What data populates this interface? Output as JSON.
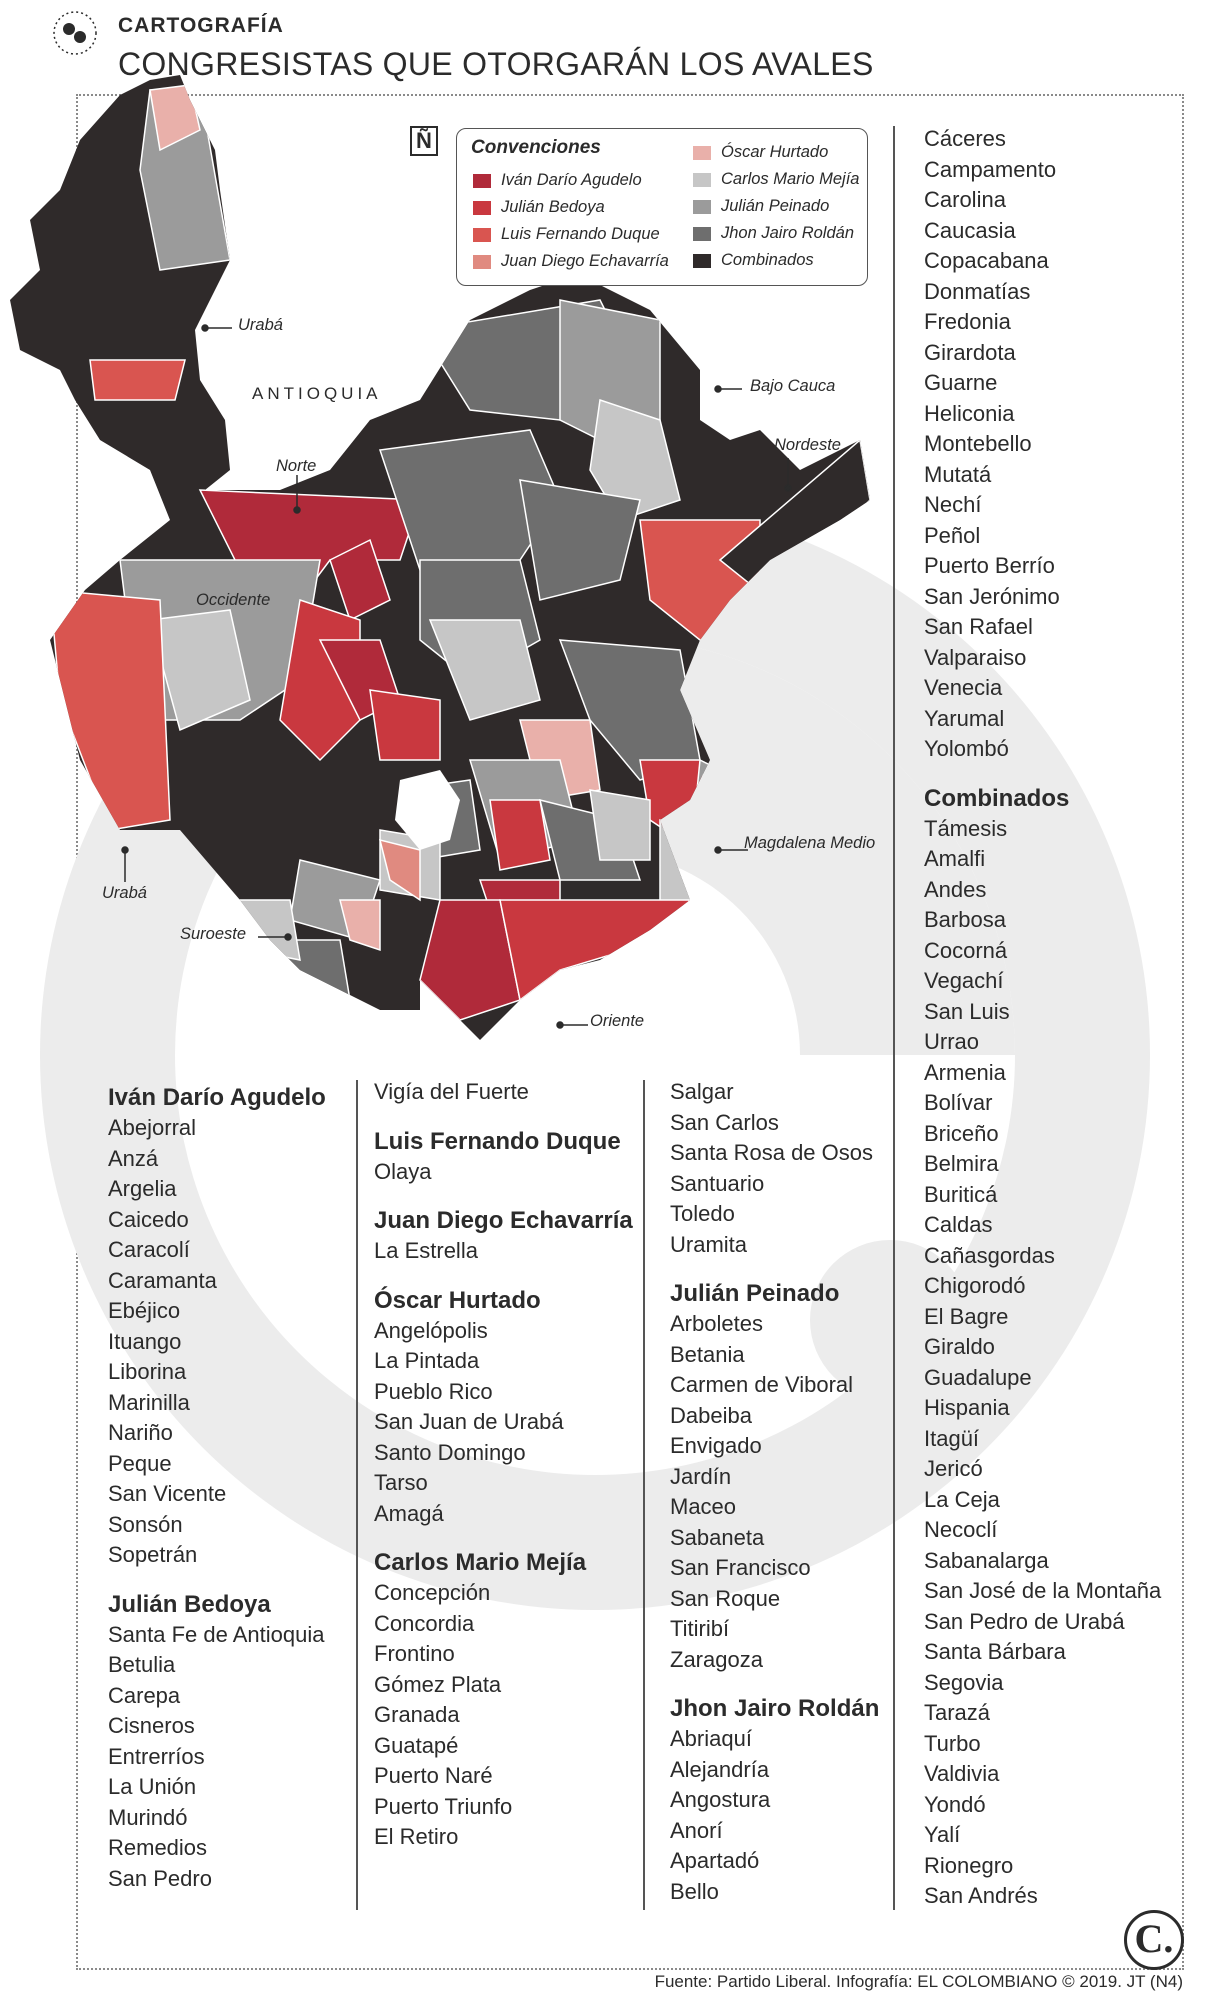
{
  "header": {
    "kicker": "CARTOGRAFÍA",
    "title": "CONGRESISTAS QUE OTORGARÁN LOS AVALES"
  },
  "map": {
    "north_symbol": "Ñ",
    "department_label": "ANTIOQUIA",
    "region_labels": {
      "uraba_north": "Urabá",
      "uraba_south": "Urabá",
      "norte": "Norte",
      "occidente": "Occidente",
      "bajo_cauca": "Bajo Cauca",
      "nordeste": "Nordeste",
      "magdalena_medio": "Magdalena Medio",
      "suroeste": "Suroeste",
      "oriente": "Oriente"
    }
  },
  "legend": {
    "title": "Convenciones",
    "items": [
      {
        "label": "Iván Darío Agudelo",
        "color": "#b02a3a"
      },
      {
        "label": "Julián Bedoya",
        "color": "#c9383f"
      },
      {
        "label": "Luis Fernando Duque",
        "color": "#d95550"
      },
      {
        "label": "Juan Diego Echavarría",
        "color": "#e08a80"
      },
      {
        "label": "Óscar Hurtado",
        "color": "#e9b0aa"
      },
      {
        "label": "Carlos Mario Mejía",
        "color": "#c6c6c6"
      },
      {
        "label": "Julián Peinado",
        "color": "#9b9b9b"
      },
      {
        "label": "Jhon Jairo Roldán",
        "color": "#6e6e6e"
      },
      {
        "label": "Combinados",
        "color": "#2f2a2a"
      }
    ]
  },
  "lists": {
    "agudelo": {
      "name": "Iván Darío Agudelo",
      "items": [
        "Abejorral",
        "Anzá",
        "Argelia",
        "Caicedo",
        "Caracolí",
        "Caramanta",
        "Ebéjico",
        "Ituango",
        "Liborina",
        "Marinilla",
        "Nariño",
        "Peque",
        "San Vicente",
        "Sonsón",
        "Sopetrán"
      ]
    },
    "bedoya": {
      "name": "Julián Bedoya",
      "items": [
        "Santa Fe de Antioquia",
        "Betulia",
        "Carepa",
        "Cisneros",
        "Entrerríos",
        "La Unión",
        "Murindó",
        "Remedios",
        "San Pedro",
        "Vigía del Fuerte"
      ]
    },
    "duque": {
      "name": "Luis Fernando Duque",
      "items": [
        "Olaya"
      ]
    },
    "echavarria": {
      "name": "Juan Diego Echavarría",
      "items": [
        "La Estrella"
      ]
    },
    "hurtado": {
      "name": "Óscar Hurtado",
      "items": [
        "Angelópolis",
        "La Pintada",
        "Pueblo Rico",
        "San Juan de Urabá",
        "Santo Domingo",
        "Tarso",
        "Amagá"
      ]
    },
    "mejia": {
      "name": "Carlos Mario Mejía",
      "items": [
        "Concepción",
        "Concordia",
        "Frontino",
        "Gómez Plata",
        "Granada",
        "Guatapé",
        "Puerto Naré",
        "Puerto Triunfo",
        "El Retiro",
        "Salgar",
        "San Carlos",
        "Santa Rosa de Osos",
        "Santuario",
        "Toledo",
        "Uramita"
      ]
    },
    "peinado": {
      "name": "Julián Peinado",
      "items": [
        "Arboletes",
        "Betania",
        "Carmen de Viboral",
        "Dabeiba",
        "Envigado",
        "Jardín",
        "Maceo",
        "Sabaneta",
        "San Francisco",
        "San Roque",
        "Titiribí",
        "Zaragoza"
      ]
    },
    "roldan": {
      "name": "Jhon Jairo Roldán",
      "items": [
        "Abriaquí",
        "Alejandría",
        "Angostura",
        "Anorí",
        "Apartadó",
        "Bello",
        "Cáceres",
        "Campamento",
        "Carolina",
        "Caucasia",
        "Copacabana",
        "Donmatías",
        "Fredonia",
        "Girardota",
        "Guarne",
        "Heliconia",
        "Montebello",
        "Mutatá",
        "Nechí",
        "Peñol",
        "Puerto Berrío",
        "San Jerónimo",
        "San Rafael",
        "Valparaiso",
        "Venecia",
        "Yarumal",
        "Yolombó"
      ]
    },
    "combinados": {
      "name": "Combinados",
      "items": [
        "Támesis",
        "Amalfi",
        "Andes",
        "Barbosa",
        "Cocorná",
        "Vegachí",
        "San Luis",
        "Urrao",
        "Armenia",
        "Bolívar",
        "Briceño",
        "Belmira",
        "Buriticá",
        "Caldas",
        "Cañasgordas",
        "Chigorodó",
        "El Bagre",
        "Giraldo",
        "Guadalupe",
        "Hispania",
        "Itagüí",
        "Jericó",
        "La Ceja",
        "Necoclí",
        "Sabanalarga",
        "San José de la Montaña",
        "San Pedro de Urabá",
        "Santa Bárbara",
        "Segovia",
        "Tarazá",
        "Turbo",
        "Valdivia",
        "Yondó",
        "Yalí",
        "Rionegro",
        "San Andrés"
      ]
    }
  },
  "footer": {
    "source": "Fuente: Partido Liberal. Infografía: EL COLOMBIANO © 2019. JT (N4)",
    "logo": "C."
  }
}
